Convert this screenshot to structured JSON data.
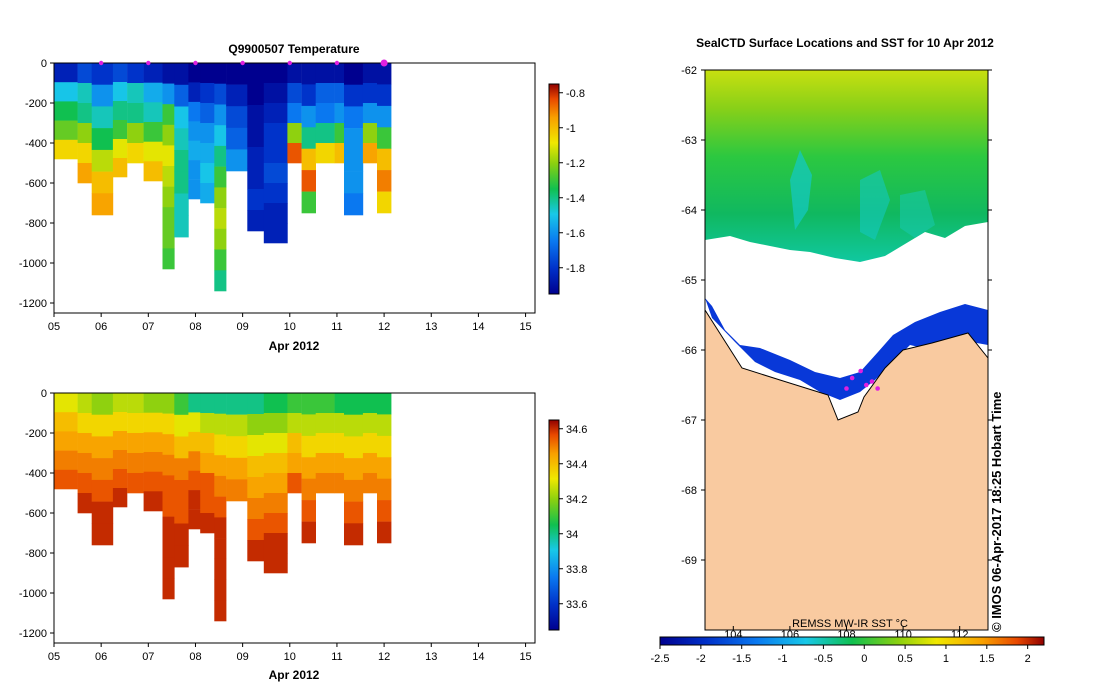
{
  "chart_data": [
    {
      "type": "heatmap",
      "title": "Q9900507  Temperature",
      "xlabel": "Apr 2012",
      "x_ticks": [
        "05",
        "06",
        "07",
        "08",
        "09",
        "10",
        "11",
        "12",
        "13",
        "14",
        "15"
      ],
      "xlim": [
        5,
        15.2
      ],
      "y_ticks": [
        "0",
        "-200",
        "-400",
        "-600",
        "-800",
        "-1000",
        "-1200"
      ],
      "ylim": [
        -1250,
        0
      ],
      "colorbar": {
        "ticks": [
          "-0.8",
          "-1",
          "-1.2",
          "-1.4",
          "-1.6",
          "-1.8"
        ],
        "range": [
          -1.95,
          -0.75
        ]
      },
      "markers_x_day": [
        6,
        7,
        8,
        9,
        10,
        11,
        12
      ],
      "profiles": [
        {
          "day": 5.0,
          "max_depth": 480,
          "values": [
            -1.85,
            -1.5,
            -1.35,
            -1.25,
            -1.05
          ]
        },
        {
          "day": 5.5,
          "max_depth": 600,
          "values": [
            -1.75,
            -1.45,
            -1.4,
            -1.2,
            -1.05,
            -0.95
          ]
        },
        {
          "day": 5.8,
          "max_depth": 760,
          "values": [
            -1.8,
            -1.6,
            -1.45,
            -1.35,
            -1.15,
            -1.0,
            -0.95
          ]
        },
        {
          "day": 6.25,
          "max_depth": 570,
          "values": [
            -1.75,
            -1.5,
            -1.4,
            -1.3,
            -1.1,
            -1.0
          ]
        },
        {
          "day": 6.55,
          "max_depth": 500,
          "values": [
            -1.8,
            -1.45,
            -1.4,
            -1.2,
            -1.05
          ]
        },
        {
          "day": 6.9,
          "max_depth": 590,
          "values": [
            -1.85,
            -1.55,
            -1.45,
            -1.3,
            -1.1,
            -1.0
          ]
        },
        {
          "day": 7.3,
          "max_depth": 1030,
          "values": [
            -1.9,
            -1.6,
            -1.3,
            -1.2,
            -1.1,
            -1.15,
            -1.2,
            -1.25,
            -1.25,
            -1.3
          ]
        },
        {
          "day": 7.55,
          "max_depth": 870,
          "values": [
            -1.9,
            -1.7,
            -1.5,
            -1.45,
            -1.4,
            -1.4,
            -1.45,
            -1.45
          ]
        },
        {
          "day": 7.85,
          "max_depth": 680,
          "values": [
            -1.95,
            -1.85,
            -1.65,
            -1.6,
            -1.55,
            -1.6,
            -1.6
          ]
        },
        {
          "day": 8.1,
          "max_depth": 700,
          "values": [
            -1.95,
            -1.8,
            -1.7,
            -1.6,
            -1.55,
            -1.5,
            -1.55
          ]
        },
        {
          "day": 8.4,
          "max_depth": 1140,
          "values": [
            -1.95,
            -1.75,
            -1.6,
            -1.5,
            -1.4,
            -1.3,
            -1.2,
            -1.15,
            -1.2,
            -1.3,
            -1.4
          ]
        },
        {
          "day": 8.65,
          "max_depth": 540,
          "values": [
            -1.95,
            -1.85,
            -1.75,
            -1.7,
            -1.6
          ]
        },
        {
          "day": 9.1,
          "max_depth": 840,
          "values": [
            -1.95,
            -1.95,
            -1.9,
            -1.9,
            -1.85,
            -1.85,
            -1.8,
            -1.85
          ]
        },
        {
          "day": 9.45,
          "max_depth": 900,
          "values": [
            -1.95,
            -1.9,
            -1.85,
            -1.8,
            -1.8,
            -1.75,
            -1.8,
            -1.85,
            -1.85
          ]
        },
        {
          "day": 9.95,
          "max_depth": 500,
          "values": [
            -1.9,
            -1.75,
            -1.65,
            -1.2,
            -0.85
          ]
        },
        {
          "day": 10.25,
          "max_depth": 750,
          "values": [
            -1.9,
            -1.8,
            -1.6,
            -1.4,
            -1.0,
            -0.85,
            -1.3
          ]
        },
        {
          "day": 10.55,
          "max_depth": 500,
          "values": [
            -1.9,
            -1.7,
            -1.65,
            -1.4,
            -1.05
          ]
        },
        {
          "day": 10.95,
          "max_depth": 500,
          "values": [
            -1.9,
            -1.7,
            -1.6,
            -1.3,
            -1.0
          ]
        },
        {
          "day": 11.15,
          "max_depth": 760,
          "values": [
            -1.95,
            -1.8,
            -1.65,
            -1.6,
            -1.6,
            -1.6,
            -1.65
          ]
        },
        {
          "day": 11.55,
          "max_depth": 500,
          "values": [
            -1.9,
            -1.8,
            -1.6,
            -1.2,
            -0.95
          ]
        },
        {
          "day": 11.85,
          "max_depth": 750,
          "values": [
            -1.9,
            -1.8,
            -1.6,
            -1.3,
            -1.0,
            -0.9,
            -1.05
          ]
        }
      ]
    },
    {
      "type": "heatmap",
      "title": "",
      "xlabel": "Apr 2012",
      "x_ticks": [
        "05",
        "06",
        "07",
        "08",
        "09",
        "10",
        "11",
        "12",
        "13",
        "14",
        "15"
      ],
      "xlim": [
        5,
        15.2
      ],
      "y_ticks": [
        "0",
        "-200",
        "-400",
        "-600",
        "-800",
        "-1000",
        "-1200"
      ],
      "ylim": [
        -1250,
        0
      ],
      "colorbar": {
        "ticks": [
          "34.6",
          "34.4",
          "34.2",
          "34",
          "33.8",
          "33.6"
        ],
        "range": [
          33.45,
          34.65
        ]
      },
      "profiles": [
        {
          "day": 5.0,
          "max_depth": 480,
          "values": [
            34.3,
            34.4,
            34.45,
            34.5,
            34.55
          ]
        },
        {
          "day": 5.5,
          "max_depth": 600,
          "values": [
            34.25,
            34.35,
            34.45,
            34.5,
            34.55,
            34.6
          ]
        },
        {
          "day": 5.8,
          "max_depth": 760,
          "values": [
            34.2,
            34.35,
            34.45,
            34.5,
            34.55,
            34.6,
            34.6
          ]
        },
        {
          "day": 6.25,
          "max_depth": 570,
          "values": [
            34.25,
            34.35,
            34.45,
            34.5,
            34.55,
            34.6
          ]
        },
        {
          "day": 6.55,
          "max_depth": 500,
          "values": [
            34.25,
            34.35,
            34.45,
            34.5,
            34.55
          ]
        },
        {
          "day": 6.9,
          "max_depth": 590,
          "values": [
            34.2,
            34.35,
            34.45,
            34.5,
            34.55,
            34.6
          ]
        },
        {
          "day": 7.3,
          "max_depth": 1030,
          "values": [
            34.2,
            34.35,
            34.45,
            34.5,
            34.55,
            34.55,
            34.6,
            34.6,
            34.6,
            34.6
          ]
        },
        {
          "day": 7.55,
          "max_depth": 870,
          "values": [
            34.1,
            34.3,
            34.4,
            34.5,
            34.55,
            34.55,
            34.6,
            34.6
          ]
        },
        {
          "day": 7.85,
          "max_depth": 680,
          "values": [
            34.0,
            34.3,
            34.4,
            34.5,
            34.55,
            34.6,
            34.6
          ]
        },
        {
          "day": 8.1,
          "max_depth": 700,
          "values": [
            34.0,
            34.25,
            34.4,
            34.45,
            34.55,
            34.55,
            34.6
          ]
        },
        {
          "day": 8.4,
          "max_depth": 1140,
          "values": [
            34.0,
            34.25,
            34.35,
            34.45,
            34.5,
            34.55,
            34.6,
            34.6,
            34.6,
            34.6,
            34.6
          ]
        },
        {
          "day": 8.65,
          "max_depth": 540,
          "values": [
            34.0,
            34.25,
            34.35,
            34.45,
            34.5
          ]
        },
        {
          "day": 9.1,
          "max_depth": 840,
          "values": [
            34.0,
            34.2,
            34.3,
            34.4,
            34.45,
            34.5,
            34.55,
            34.6
          ]
        },
        {
          "day": 9.45,
          "max_depth": 900,
          "values": [
            34.05,
            34.2,
            34.3,
            34.4,
            34.45,
            34.5,
            34.55,
            34.6,
            34.6
          ]
        },
        {
          "day": 9.95,
          "max_depth": 500,
          "values": [
            34.1,
            34.25,
            34.4,
            34.45,
            34.55
          ]
        },
        {
          "day": 10.25,
          "max_depth": 750,
          "values": [
            34.1,
            34.25,
            34.35,
            34.45,
            34.5,
            34.55,
            34.6
          ]
        },
        {
          "day": 10.55,
          "max_depth": 500,
          "values": [
            34.1,
            34.25,
            34.35,
            34.45,
            34.5
          ]
        },
        {
          "day": 10.95,
          "max_depth": 500,
          "values": [
            34.05,
            34.25,
            34.35,
            34.45,
            34.5
          ]
        },
        {
          "day": 11.15,
          "max_depth": 760,
          "values": [
            34.05,
            34.25,
            34.35,
            34.45,
            34.5,
            34.55,
            34.6
          ]
        },
        {
          "day": 11.55,
          "max_depth": 500,
          "values": [
            34.05,
            34.25,
            34.35,
            34.45,
            34.5
          ]
        },
        {
          "day": 11.85,
          "max_depth": 750,
          "values": [
            34.05,
            34.25,
            34.35,
            34.45,
            34.5,
            34.55,
            34.6
          ]
        }
      ]
    },
    {
      "type": "heatmap",
      "title": "SealCTD Surface Locations and SST for 10 Apr 2012",
      "y_ticks": [
        "-62",
        "-63",
        "-64",
        "-65",
        "-66",
        "-67",
        "-68",
        "-69"
      ],
      "ylim": [
        -70.0,
        -62.0
      ],
      "x_ticks": [
        "104",
        "106",
        "108",
        "110",
        "112"
      ],
      "xlim": [
        103.0,
        113.0
      ],
      "colorbar": {
        "label": "REMSS MW-IR SST °C",
        "ticks": [
          "-2.5",
          "-2",
          "-1.5",
          "-1",
          "-0.5",
          "0",
          "0.5",
          "1",
          "1.5",
          "2"
        ],
        "range": [
          -2.5,
          2.2
        ]
      },
      "land_color": "#f9caa0",
      "profile_locations": [
        {
          "lon": 108.0,
          "lat": -66.55
        },
        {
          "lon": 108.2,
          "lat": -66.4
        },
        {
          "lon": 108.5,
          "lat": -66.3
        },
        {
          "lon": 108.7,
          "lat": -66.5
        },
        {
          "lon": 108.9,
          "lat": -66.45
        },
        {
          "lon": 109.1,
          "lat": -66.55
        }
      ]
    }
  ],
  "credit": "© IMOS 06-Apr-2017 18:25 Hobart Time"
}
